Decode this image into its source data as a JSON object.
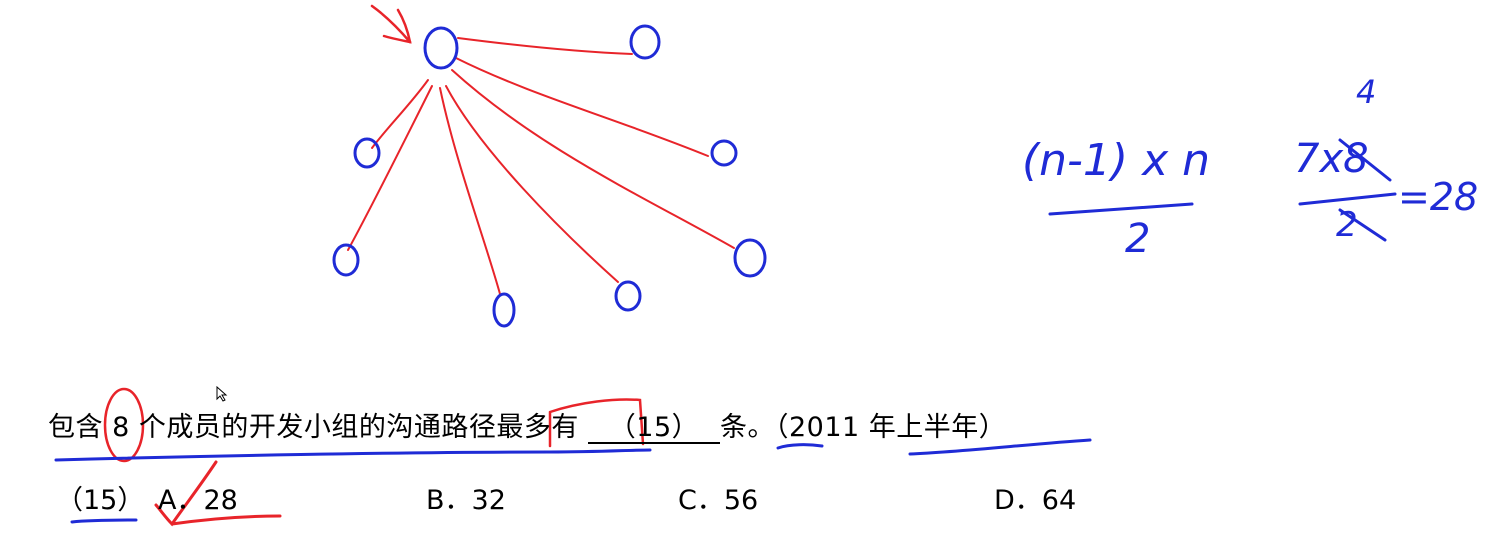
{
  "colors": {
    "ink_blue": "#1f2bd6",
    "ink_red": "#e8242a",
    "text": "#000000"
  },
  "diagram": {
    "node_count": 8,
    "center_node_marker": "arrow-pointer"
  },
  "handwriting": {
    "formula_numerator": "(n-1) x n",
    "formula_denominator": "2",
    "calc_top": "4",
    "calc_numerator": "7x8",
    "calc_denominator": "2",
    "calc_result": "=28"
  },
  "question": {
    "prefix": "包含",
    "number": "8",
    "middle": "个成员的开发小组的沟通路径",
    "highlight": "最多有",
    "blank": "（15）",
    "suffix": "条。",
    "source": "（2011 年上半年）"
  },
  "options": {
    "label": "（15）",
    "items": [
      {
        "letter": "A．",
        "value": "28"
      },
      {
        "letter": "B．",
        "value": "32"
      },
      {
        "letter": "C．",
        "value": "56"
      },
      {
        "letter": "D．",
        "value": "64"
      }
    ]
  }
}
